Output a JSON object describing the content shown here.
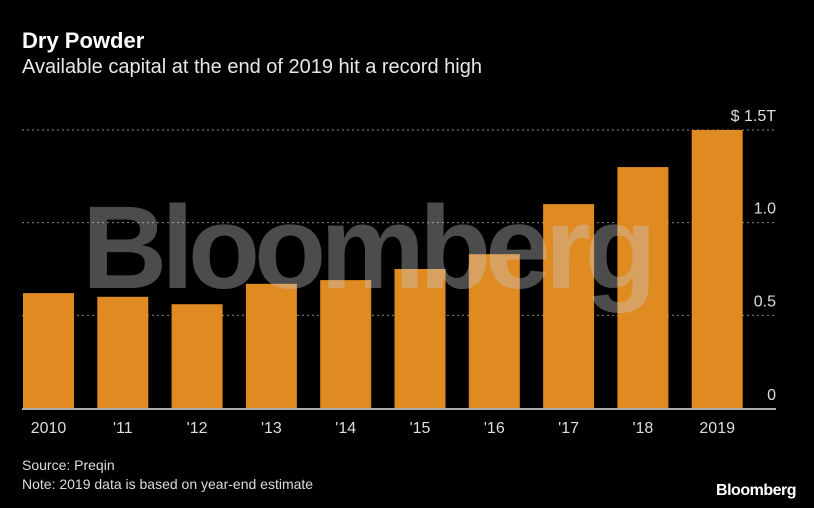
{
  "title": "Dry Powder",
  "subtitle": "Available capital at the end of 2019 hit a record high",
  "source": "Source: Preqin",
  "note": "Note: 2019 data is based on year-end estimate",
  "logo": "Bloomberg",
  "watermark": "Bloomberg",
  "chart_data": {
    "type": "bar",
    "categories": [
      "2010",
      "'11",
      "'12",
      "'13",
      "'14",
      "'15",
      "'16",
      "'17",
      "'18",
      "2019"
    ],
    "values": [
      0.62,
      0.6,
      0.56,
      0.67,
      0.69,
      0.75,
      0.83,
      1.1,
      1.3,
      1.5
    ],
    "ylim": [
      0,
      1.5
    ],
    "yticks": [
      0,
      0.5,
      1.0,
      1.5
    ],
    "ytick_labels": [
      "0",
      "0.5",
      "1.0",
      "$ 1.5T"
    ],
    "bar_color": "#e08a22",
    "grid": true,
    "yaxis_side": "right"
  }
}
